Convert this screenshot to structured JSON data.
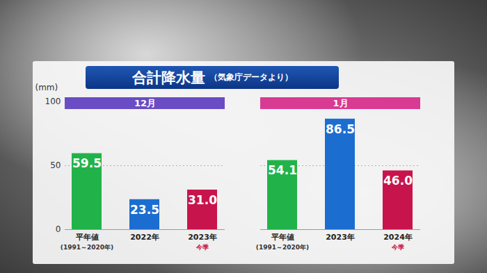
{
  "chart_data": {
    "type": "bar",
    "title": "合計降水量",
    "subtitle": "（気象庁データより）",
    "y_label": "(mm)",
    "group_labels": [
      "12月",
      "1月"
    ],
    "category_groups": [
      "12月",
      "12月",
      "12月",
      "1月",
      "1月",
      "1月"
    ],
    "categories": [
      "平年値",
      "2022年",
      "2023年",
      "平年値",
      "2023年",
      "2024年"
    ],
    "category_sublabels": [
      "(1991～2020年)",
      null,
      "今季",
      "(1991～2020年)",
      null,
      "今季"
    ],
    "values": [
      59.5,
      23.5,
      31.0,
      54.1,
      86.5,
      46.0
    ],
    "value_labels": [
      "59.5",
      "23.5",
      "31.0",
      "54.1",
      "86.5",
      "46.0"
    ],
    "colors": [
      "#21b34a",
      "#1c6dd0",
      "#c8144c",
      "#21b34a",
      "#1c6dd0",
      "#c8144c"
    ],
    "ylim": [
      0,
      100
    ],
    "yticks": [
      0,
      50,
      100
    ],
    "grid": true,
    "data_labels": true
  }
}
